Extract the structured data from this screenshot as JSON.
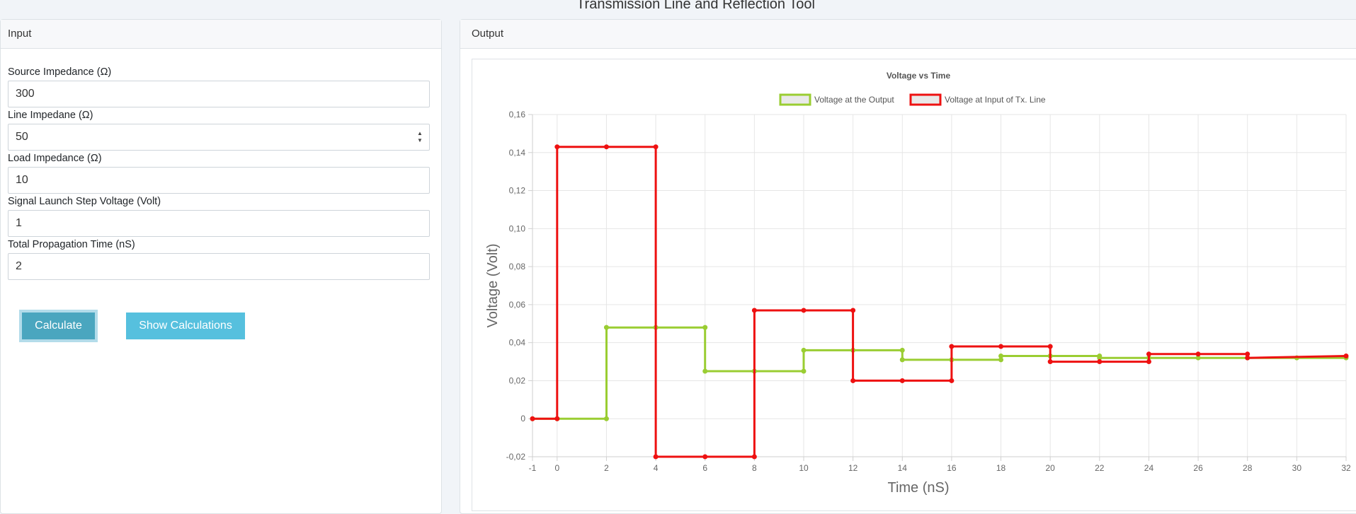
{
  "app": {
    "title": "Transmission Line and Reflection Tool"
  },
  "input_panel": {
    "header": "Input",
    "fields": [
      {
        "label": "Source Impedance (Ω)",
        "value": "300"
      },
      {
        "label": "Line Impedane (Ω)",
        "value": "50"
      },
      {
        "label": "Load Impedance (Ω)",
        "value": "10"
      },
      {
        "label": "Signal Launch Step Voltage (Volt)",
        "value": "1"
      },
      {
        "label": "Total Propagation Time (nS)",
        "value": "2"
      }
    ],
    "calculate_label": "Calculate",
    "show_calculations_label": "Show Calculations"
  },
  "output_panel": {
    "header": "Output"
  },
  "colors": {
    "output_series": "#9acd32",
    "input_series": "#ee1111"
  },
  "chart_data": {
    "type": "line",
    "title": "Voltage vs Time",
    "xlabel": "Time (nS)",
    "ylabel": "Voltage (Volt)",
    "xlim": [
      -1,
      32
    ],
    "ylim": [
      -0.02,
      0.16
    ],
    "x_ticks": [
      "-1",
      "0",
      "2",
      "4",
      "6",
      "8",
      "10",
      "12",
      "14",
      "16",
      "18",
      "20",
      "22",
      "24",
      "26",
      "28",
      "30",
      "32"
    ],
    "x_tick_values": [
      -1,
      0,
      2,
      4,
      6,
      8,
      10,
      12,
      14,
      16,
      18,
      20,
      22,
      24,
      26,
      28,
      30,
      32
    ],
    "y_ticks": [
      "-0,02",
      "0",
      "0,02",
      "0,04",
      "0,06",
      "0,08",
      "0,10",
      "0,12",
      "0,14",
      "0,16"
    ],
    "y_tick_values": [
      -0.02,
      0,
      0.02,
      0.04,
      0.06,
      0.08,
      0.1,
      0.12,
      0.14,
      0.16
    ],
    "grid": true,
    "legend_position": "top",
    "series": [
      {
        "name": "Voltage at the Output",
        "color": "#9acd32",
        "x": [
          -1,
          0,
          2,
          2,
          4,
          6,
          6,
          8,
          10,
          10,
          12,
          14,
          14,
          16,
          18,
          18,
          20,
          22,
          22,
          24,
          26,
          28,
          30,
          32
        ],
        "y": [
          0,
          0,
          0,
          0.048,
          0.048,
          0.048,
          0.025,
          0.025,
          0.025,
          0.036,
          0.036,
          0.036,
          0.031,
          0.031,
          0.031,
          0.033,
          0.033,
          0.033,
          0.032,
          0.032,
          0.032,
          0.032,
          0.032,
          0.032
        ]
      },
      {
        "name": "Voltage at Input of Tx. Line",
        "color": "#ee1111",
        "x": [
          -1,
          0,
          0,
          2,
          4,
          4,
          6,
          8,
          8,
          10,
          12,
          12,
          14,
          16,
          16,
          18,
          20,
          20,
          22,
          24,
          24,
          26,
          28,
          28,
          32
        ],
        "y": [
          0,
          0,
          0.143,
          0.143,
          0.143,
          -0.02,
          -0.02,
          -0.02,
          0.057,
          0.057,
          0.057,
          0.02,
          0.02,
          0.02,
          0.038,
          0.038,
          0.038,
          0.03,
          0.03,
          0.03,
          0.034,
          0.034,
          0.034,
          0.032,
          0.033
        ]
      }
    ]
  }
}
